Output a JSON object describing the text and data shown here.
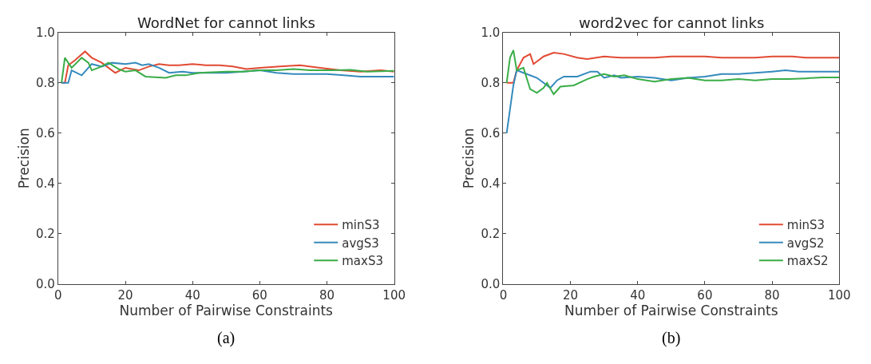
{
  "chart_data": [
    {
      "type": "line",
      "title": "WordNet for cannot links",
      "xlabel": "Number of Pairwise Constraints",
      "ylabel": "Precision",
      "annotations": [
        "(a)"
      ],
      "xlim": [
        0,
        100
      ],
      "ylim": [
        0,
        1
      ],
      "xticks": [
        0,
        20,
        40,
        60,
        80,
        100
      ],
      "yticks": [
        {
          "value": 0,
          "label": "0.0"
        },
        {
          "value": 0.2,
          "label": "0.2"
        },
        {
          "value": 0.4,
          "label": "0.4"
        },
        {
          "value": 0.6,
          "label": "0.6"
        },
        {
          "value": 0.8,
          "label": "0.8"
        },
        {
          "value": 1,
          "label": "1.0"
        }
      ],
      "legend": "bottom right",
      "marker": "none",
      "line_style": "solid",
      "series": [
        {
          "name": "minS3",
          "color": "#e24a33",
          "x": [
            1,
            2,
            3,
            5,
            8,
            10,
            13,
            17,
            20,
            24,
            27,
            30,
            33,
            36,
            40,
            44,
            48,
            52,
            56,
            60,
            66,
            72,
            78,
            84,
            90,
            96,
            100
          ],
          "values": [
            0.8,
            0.8,
            0.87,
            0.89,
            0.925,
            0.9,
            0.88,
            0.84,
            0.86,
            0.85,
            0.865,
            0.875,
            0.87,
            0.87,
            0.875,
            0.87,
            0.87,
            0.865,
            0.855,
            0.86,
            0.865,
            0.87,
            0.86,
            0.85,
            0.845,
            0.85,
            0.845
          ]
        },
        {
          "name": "avgS3",
          "color": "#348abd",
          "x": [
            1,
            3,
            4,
            7,
            9,
            10,
            13,
            16,
            20,
            23,
            25,
            27,
            30,
            33,
            37,
            40,
            45,
            50,
            55,
            60,
            65,
            70,
            75,
            80,
            85,
            90,
            95,
            100
          ],
          "values": [
            0.8,
            0.8,
            0.85,
            0.83,
            0.86,
            0.875,
            0.865,
            0.88,
            0.875,
            0.88,
            0.87,
            0.875,
            0.86,
            0.84,
            0.845,
            0.84,
            0.84,
            0.84,
            0.845,
            0.85,
            0.84,
            0.835,
            0.835,
            0.835,
            0.83,
            0.825,
            0.825,
            0.825
          ]
        },
        {
          "name": "maxS3",
          "color": "#3aad48",
          "x": [
            1,
            2,
            4,
            7,
            9,
            10,
            12,
            15,
            18,
            20,
            23,
            26,
            32,
            35,
            38,
            42,
            50,
            55,
            60,
            65,
            70,
            75,
            82,
            87,
            92,
            100
          ],
          "values": [
            0.8,
            0.9,
            0.86,
            0.9,
            0.88,
            0.85,
            0.86,
            0.88,
            0.855,
            0.845,
            0.85,
            0.825,
            0.82,
            0.83,
            0.83,
            0.84,
            0.845,
            0.845,
            0.85,
            0.85,
            0.855,
            0.85,
            0.85,
            0.852,
            0.845,
            0.848
          ]
        }
      ]
    },
    {
      "type": "line",
      "title": "word2vec for cannot links",
      "xlabel": "Number of Pairwise Constraints",
      "ylabel": "Precision",
      "annotations": [
        "(b)"
      ],
      "xlim": [
        0,
        100
      ],
      "ylim": [
        0,
        1
      ],
      "xticks": [
        0,
        20,
        40,
        60,
        80,
        100
      ],
      "yticks": [
        {
          "value": 0,
          "label": "0.0"
        },
        {
          "value": 0.2,
          "label": "0.2"
        },
        {
          "value": 0.4,
          "label": "0.4"
        },
        {
          "value": 0.6,
          "label": "0.6"
        },
        {
          "value": 0.8,
          "label": "0.8"
        },
        {
          "value": 1,
          "label": "1.0"
        }
      ],
      "legend": "bottom right",
      "marker": "none",
      "line_style": "solid",
      "series": [
        {
          "name": "minS3",
          "color": "#e24a33",
          "x": [
            1,
            3,
            4,
            6,
            8,
            9,
            12,
            15,
            18,
            22,
            25,
            30,
            35,
            40,
            45,
            50,
            55,
            60,
            65,
            70,
            75,
            80,
            86,
            90,
            95,
            100
          ],
          "values": [
            0.8,
            0.8,
            0.85,
            0.9,
            0.915,
            0.875,
            0.905,
            0.92,
            0.915,
            0.9,
            0.895,
            0.905,
            0.9,
            0.9,
            0.9,
            0.905,
            0.905,
            0.905,
            0.9,
            0.9,
            0.9,
            0.905,
            0.905,
            0.9,
            0.9,
            0.9
          ]
        },
        {
          "name": "avgS2",
          "color": "#348abd",
          "x": [
            1,
            3,
            4,
            7,
            10,
            12,
            14,
            16,
            18,
            22,
            26,
            28,
            30,
            33,
            35,
            40,
            45,
            50,
            55,
            60,
            65,
            70,
            75,
            80,
            84,
            88,
            92,
            100
          ],
          "values": [
            0.6,
            0.79,
            0.85,
            0.835,
            0.82,
            0.8,
            0.78,
            0.81,
            0.825,
            0.825,
            0.845,
            0.845,
            0.82,
            0.83,
            0.82,
            0.825,
            0.82,
            0.81,
            0.82,
            0.825,
            0.835,
            0.835,
            0.84,
            0.845,
            0.85,
            0.845,
            0.845,
            0.845
          ]
        },
        {
          "name": "maxS2",
          "color": "#3aad48",
          "x": [
            1,
            2,
            3,
            4,
            6,
            8,
            10,
            12,
            13,
            15,
            17,
            21,
            25,
            27,
            30,
            33,
            36,
            40,
            45,
            50,
            55,
            60,
            65,
            70,
            75,
            80,
            85,
            90,
            95,
            100
          ],
          "values": [
            0.8,
            0.9,
            0.93,
            0.85,
            0.86,
            0.775,
            0.76,
            0.78,
            0.8,
            0.755,
            0.785,
            0.79,
            0.815,
            0.825,
            0.835,
            0.825,
            0.83,
            0.815,
            0.805,
            0.815,
            0.82,
            0.81,
            0.81,
            0.815,
            0.81,
            0.815,
            0.815,
            0.818,
            0.822,
            0.822
          ]
        }
      ]
    }
  ]
}
